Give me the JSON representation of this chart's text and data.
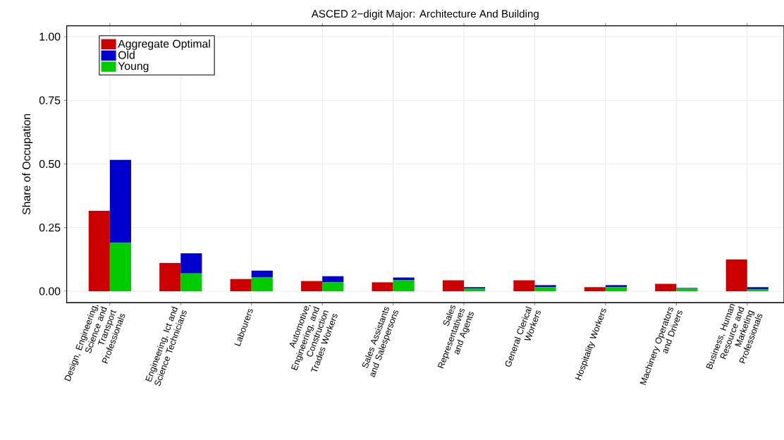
{
  "chart_data": {
    "type": "bar",
    "title": "ASCED 2−digit Major: Architecture And Building",
    "ylabel": "Share of Occupation",
    "categories": [
      "Design, Engineering, Science and Transport Professionals",
      "Engineering, Ict and Science Technicians",
      "Labourers",
      "Automotive, Engineering, and Construction Trades Workers",
      "Sales Assistants and Salespersons",
      "Sales Representatives and Agents",
      "General Clerical Workers",
      "Hospitality Workers",
      "Machinery Operators and Drivers",
      "Business, Human Resource and Marketing Professionals"
    ],
    "series": [
      {
        "name": "Aggregate Optimal",
        "color": "#cc0000",
        "values": [
          0.316,
          0.111,
          0.048,
          0.04,
          0.035,
          0.043,
          0.043,
          0.016,
          0.029,
          0.125
        ]
      },
      {
        "name": "Old",
        "color": "#0000cc",
        "values": [
          0.326,
          0.079,
          0.027,
          0.024,
          0.011,
          0.006,
          0.008,
          0.008,
          0.003,
          0.009
        ],
        "base": [
          0.19,
          0.07,
          0.054,
          0.035,
          0.043,
          0.01,
          0.016,
          0.016,
          0.01,
          0.007
        ]
      },
      {
        "name": "Young",
        "color": "#00cc00",
        "values": [
          0.19,
          0.07,
          0.054,
          0.035,
          0.043,
          0.01,
          0.016,
          0.016,
          0.01,
          0.007
        ]
      }
    ],
    "ylim": [
      -0.045,
      1.043
    ],
    "yticks": [
      {
        "value": 0,
        "label": "0.00"
      },
      {
        "value": 0.25,
        "label": "0.25"
      },
      {
        "value": 0.5,
        "label": "0.50"
      },
      {
        "value": 0.75,
        "label": "0.75"
      },
      {
        "value": 1,
        "label": "1.00"
      }
    ],
    "grid": true,
    "legend": "top left"
  }
}
